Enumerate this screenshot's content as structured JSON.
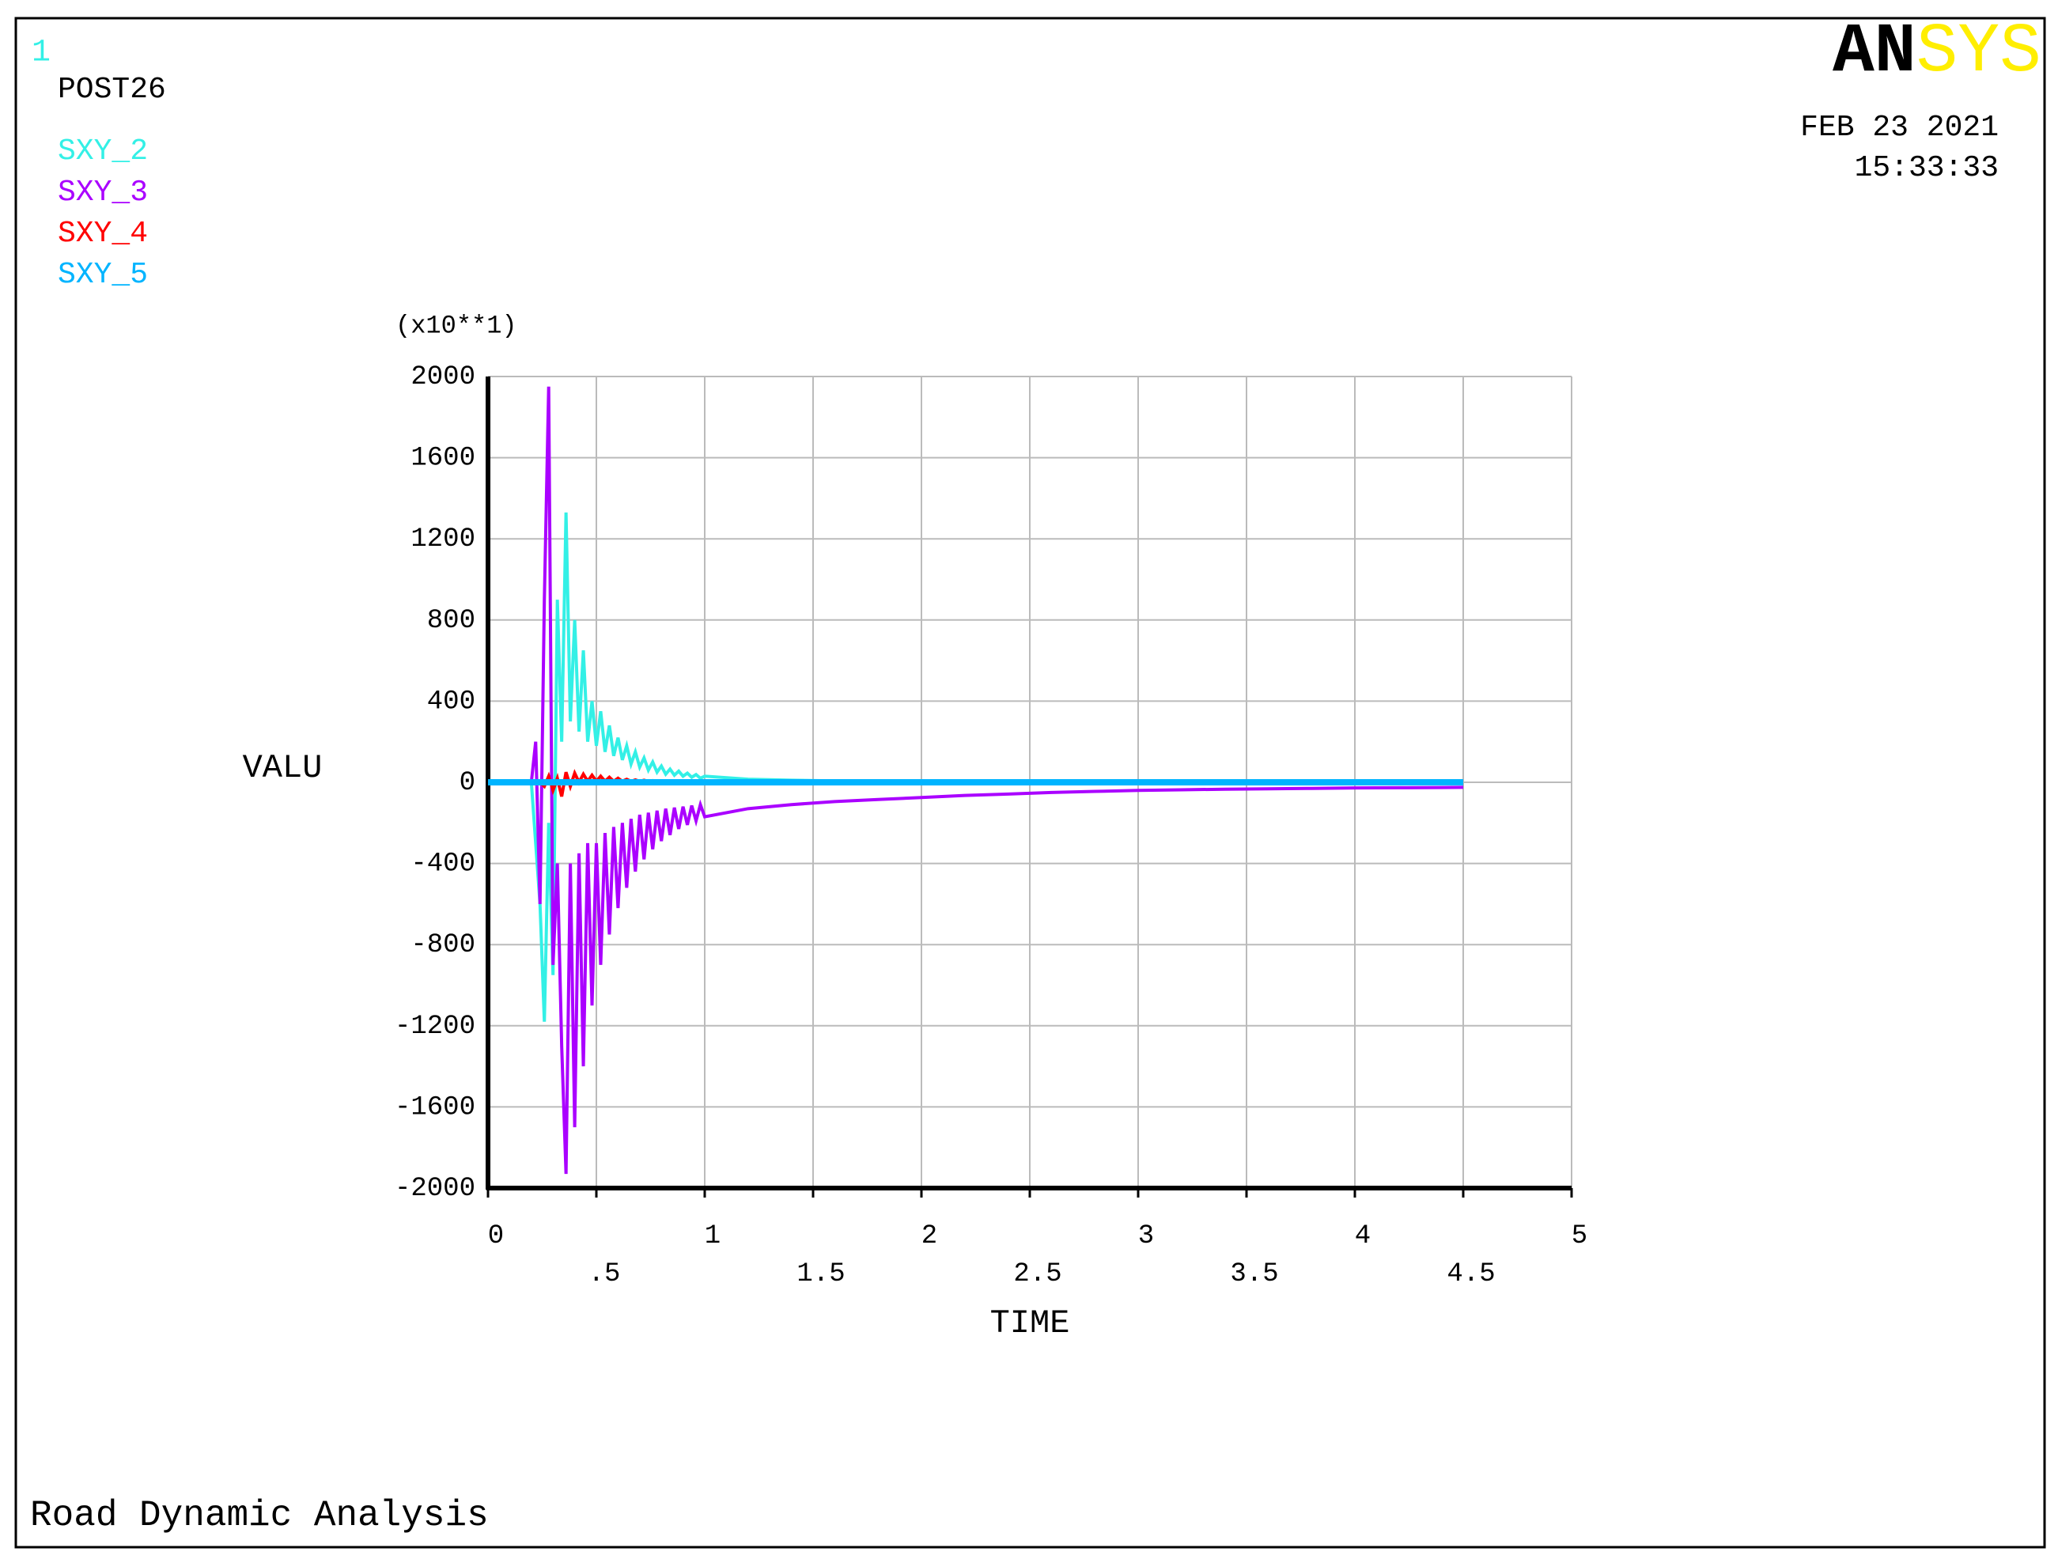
{
  "chart_data": {
    "type": "line",
    "window_number": "1",
    "module": "POST26",
    "logo_left": "AN",
    "logo_right": "SYS",
    "date": "FEB 23 2021",
    "time": "15:33:33",
    "y_multiplier": "(x10**1)",
    "ylabel": "VALU",
    "xlabel": "TIME",
    "title": "Road Dynamic Analysis",
    "grid": true,
    "x": [
      0,
      0.1,
      0.2,
      0.22,
      0.24,
      0.26,
      0.28,
      0.3,
      0.32,
      0.34,
      0.36,
      0.38,
      0.4,
      0.42,
      0.44,
      0.46,
      0.48,
      0.5,
      0.52,
      0.54,
      0.56,
      0.58,
      0.6,
      0.62,
      0.64,
      0.66,
      0.68,
      0.7,
      0.72,
      0.74,
      0.76,
      0.78,
      0.8,
      0.82,
      0.84,
      0.86,
      0.88,
      0.9,
      0.92,
      0.94,
      0.96,
      0.98,
      1.0,
      1.2,
      1.4,
      1.6,
      1.8,
      2.0,
      2.2,
      2.4,
      2.6,
      2.8,
      3.0,
      3.2,
      3.4,
      3.6,
      3.8,
      4.0,
      4.2,
      4.4,
      4.5
    ],
    "series": [
      {
        "name": "SXY_2",
        "color": "#33f0e6",
        "width": 4,
        "values": [
          0,
          0,
          0,
          -300,
          -600,
          -1180,
          -200,
          -950,
          900,
          200,
          1330,
          300,
          800,
          250,
          650,
          200,
          400,
          180,
          350,
          150,
          280,
          130,
          220,
          110,
          180,
          90,
          150,
          75,
          120,
          60,
          100,
          50,
          80,
          40,
          65,
          35,
          55,
          30,
          45,
          25,
          38,
          20,
          30,
          15,
          10,
          7,
          5,
          4,
          3,
          2,
          2,
          1,
          1,
          1,
          1,
          0,
          0,
          0,
          0,
          0,
          0
        ]
      },
      {
        "name": "SXY_3",
        "color": "#aa00ff",
        "width": 4,
        "values": [
          0,
          0,
          0,
          200,
          -600,
          900,
          1950,
          -900,
          -400,
          -1300,
          -1930,
          -400,
          -1700,
          -350,
          -1400,
          -300,
          -1100,
          -300,
          -900,
          -250,
          -750,
          -220,
          -620,
          -200,
          -520,
          -180,
          -440,
          -160,
          -380,
          -150,
          -330,
          -140,
          -290,
          -130,
          -260,
          -125,
          -230,
          -120,
          -210,
          -115,
          -190,
          -110,
          -170,
          -130,
          -110,
          -95,
          -85,
          -75,
          -65,
          -58,
          -50,
          -45,
          -40,
          -37,
          -34,
          -32,
          -30,
          -28,
          -27,
          -26,
          -25
        ]
      },
      {
        "name": "SXY_4",
        "color": "#ff0000",
        "width": 4,
        "values": [
          0,
          0,
          0,
          0,
          0,
          -20,
          30,
          -40,
          20,
          -70,
          50,
          -20,
          45,
          0,
          40,
          5,
          35,
          5,
          30,
          5,
          25,
          5,
          20,
          5,
          15,
          5,
          12,
          5,
          10,
          5,
          8,
          4,
          6,
          3,
          5,
          3,
          4,
          2,
          3,
          2,
          2,
          1,
          1,
          0,
          0,
          0,
          0,
          0,
          0,
          0,
          0,
          0,
          0,
          0,
          0,
          0,
          0,
          0,
          0,
          0,
          0
        ]
      },
      {
        "name": "SXY_5",
        "color": "#00b4ff",
        "width": 8,
        "values": [
          0,
          0,
          0,
          0,
          0,
          0,
          0,
          0,
          0,
          0,
          0,
          0,
          0,
          0,
          0,
          0,
          0,
          0,
          0,
          0,
          0,
          0,
          0,
          0,
          0,
          0,
          0,
          0,
          0,
          0,
          0,
          0,
          0,
          0,
          0,
          0,
          0,
          0,
          0,
          0,
          0,
          0,
          0,
          0,
          0,
          0,
          0,
          0,
          0,
          0,
          0,
          0,
          0,
          0,
          0,
          0,
          0,
          0,
          0,
          0,
          0
        ]
      }
    ],
    "xlim": [
      0,
      5
    ],
    "xticks": [
      0,
      {
        "value": 0.5,
        "label": ".5"
      },
      1,
      1.5,
      2,
      2.5,
      3,
      3.5,
      4,
      4.5,
      5
    ],
    "ylim": [
      -2000,
      2000
    ],
    "yticks": [
      2000,
      1600,
      1200,
      800,
      400,
      0,
      -400,
      -800,
      -1200,
      -1600,
      -2000
    ]
  }
}
